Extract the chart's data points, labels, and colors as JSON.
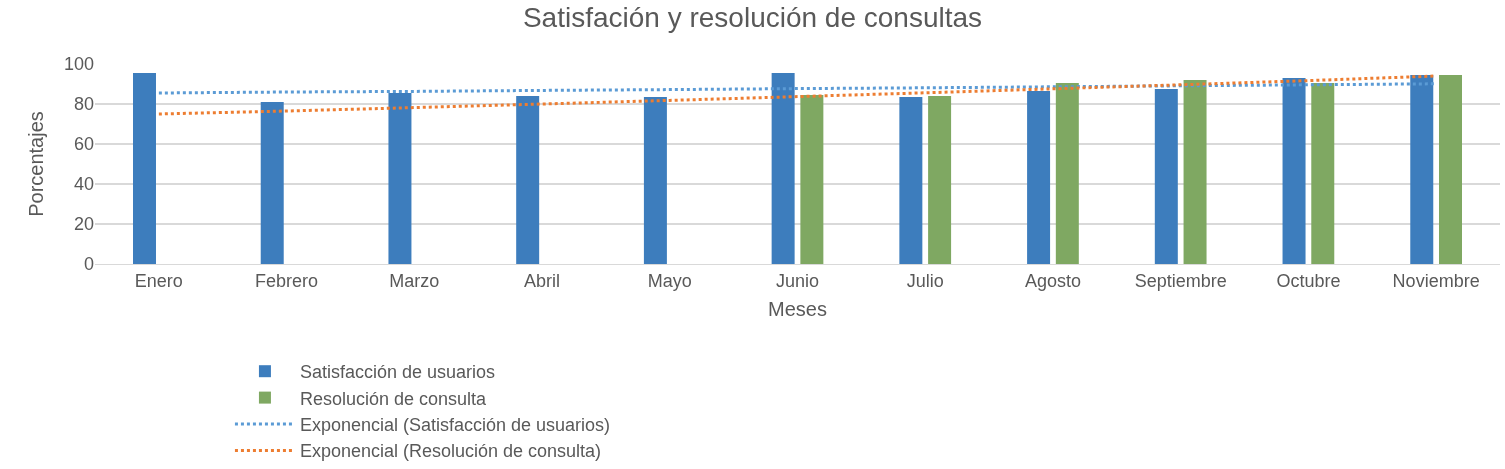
{
  "chart_data": {
    "type": "bar",
    "title": "Satisfación y resolución de consultas",
    "xlabel": "Meses",
    "ylabel": "Porcentajes",
    "categories": [
      "Enero",
      "Febrero",
      "Marzo",
      "Abril",
      "Mayo",
      "Junio",
      "Julio",
      "Agosto",
      "Septiembre",
      "Octubre",
      "Noviembre"
    ],
    "series": [
      {
        "name": "Satisfacción de usuarios",
        "color": "#3d7dbd",
        "values": [
          95.5,
          81,
          85.5,
          84,
          83.5,
          95.5,
          83.5,
          86.5,
          87.5,
          93,
          94.5
        ]
      },
      {
        "name": "Resolución de consulta",
        "color": "#7fa862",
        "values": [
          null,
          null,
          null,
          null,
          null,
          84.5,
          84,
          90.5,
          92,
          90.5,
          94.5
        ]
      },
      {
        "name": "Exponencial (Satisfacción de usuarios)",
        "type": "line",
        "line_style": "dotted",
        "color": "#5b9bd5",
        "x": [
          "Enero",
          "Febrero",
          "Marzo",
          "Abril",
          "Mayo",
          "Junio",
          "Julio",
          "Agosto",
          "Septiembre",
          "Octubre",
          "Noviembre"
        ],
        "values": [
          85.5,
          86,
          86.3,
          86.8,
          87.2,
          87.7,
          88.1,
          88.6,
          89.1,
          89.6,
          90.1
        ]
      },
      {
        "name": "Exponencial (Resolución de consulta)",
        "type": "line",
        "line_style": "dotted",
        "color": "#ed7d31",
        "x": [
          "Enero",
          "Febrero",
          "Marzo",
          "Abril",
          "Mayo",
          "Junio",
          "Julio",
          "Agosto",
          "Septiembre",
          "Octubre",
          "Noviembre"
        ],
        "values": [
          75,
          76.5,
          78.2,
          80,
          81.8,
          83.7,
          85.6,
          87.6,
          89.6,
          91.7,
          94
        ]
      }
    ],
    "ylim": [
      0,
      100
    ],
    "yticks": [
      0,
      20,
      40,
      60,
      80,
      100
    ],
    "grid": "y",
    "legend": "bottom",
    "marker": "none"
  }
}
